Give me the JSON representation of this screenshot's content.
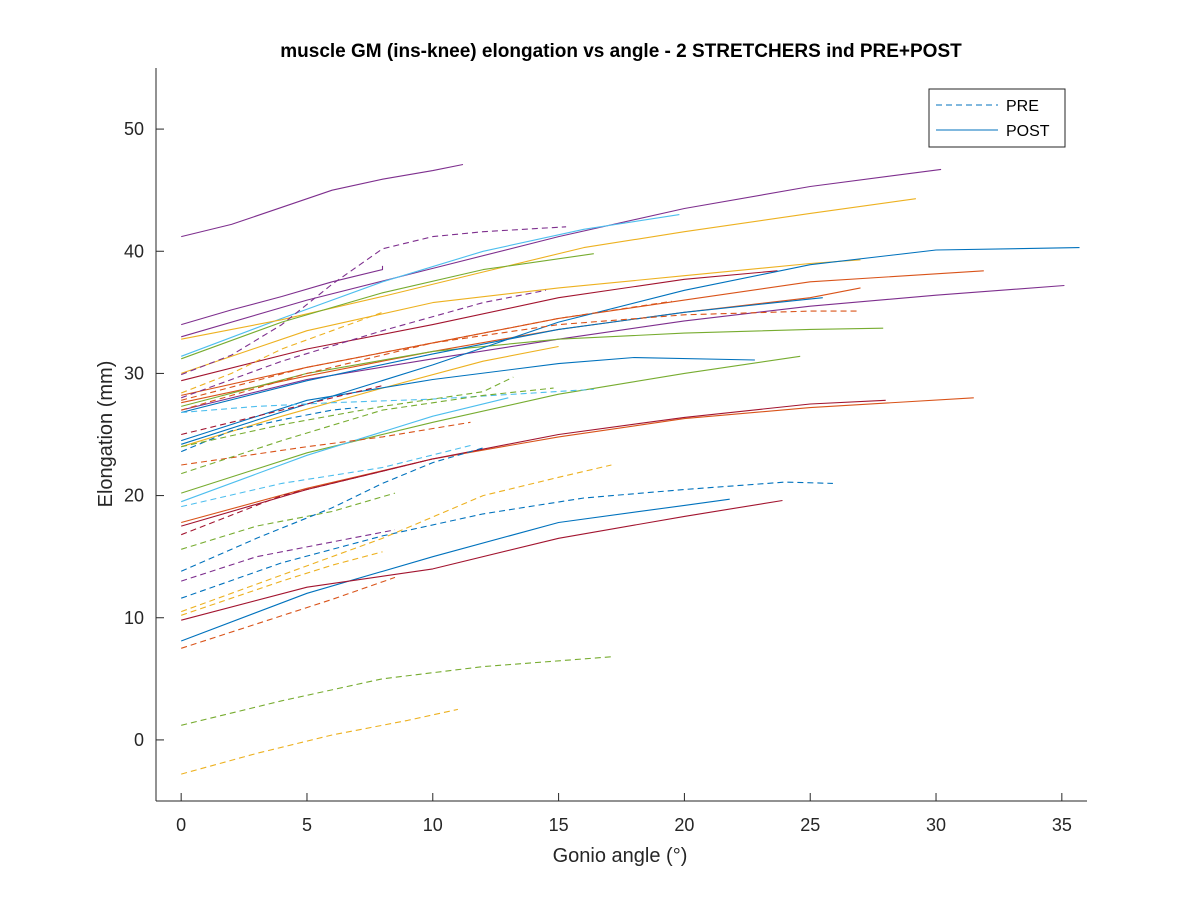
{
  "chart_data": {
    "type": "line",
    "title": "muscle GM (ins-knee) elongation vs angle - 2 STRETCHERS ind PRE+POST",
    "xlabel": "Gonio angle (°)",
    "ylabel": "Elongation (mm)",
    "xlim": [
      -1,
      36
    ],
    "ylim": [
      -5,
      55
    ],
    "xticks": [
      0,
      5,
      10,
      15,
      20,
      25,
      30,
      35
    ],
    "yticks": [
      0,
      10,
      20,
      30,
      40,
      50
    ],
    "grid": false,
    "legend": {
      "position": "top-right",
      "entries": [
        {
          "label": "PRE",
          "style": "dashed",
          "color": "#0072BD"
        },
        {
          "label": "POST",
          "style": "solid",
          "color": "#0072BD"
        }
      ]
    },
    "series": [
      {
        "style": "solid",
        "color": "#7E2F8E",
        "points": [
          [
            0,
            41.2
          ],
          [
            2,
            42.2
          ],
          [
            4,
            43.6
          ],
          [
            6,
            45.0
          ],
          [
            8,
            45.9
          ],
          [
            10,
            46.6
          ],
          [
            11.2,
            47.1
          ]
        ]
      },
      {
        "style": "solid",
        "color": "#7E2F8E",
        "points": [
          [
            0,
            34.0
          ],
          [
            2,
            35.2
          ],
          [
            4,
            36.3
          ],
          [
            6,
            37.5
          ],
          [
            8,
            38.5
          ],
          [
            8,
            38.8
          ]
        ]
      },
      {
        "style": "solid",
        "color": "#7E2F8E",
        "points": [
          [
            0,
            33.0
          ],
          [
            5,
            36.0
          ],
          [
            10,
            38.6
          ],
          [
            15,
            41.2
          ],
          [
            20,
            43.5
          ],
          [
            25,
            45.3
          ],
          [
            30.2,
            46.7
          ]
        ]
      },
      {
        "style": "solid",
        "color": "#4DBEEE",
        "points": [
          [
            0,
            31.4
          ],
          [
            4,
            34.5
          ],
          [
            8,
            37.5
          ],
          [
            12,
            40.0
          ],
          [
            16,
            41.8
          ],
          [
            19.8,
            43.0
          ]
        ]
      },
      {
        "style": "solid",
        "color": "#EDB120",
        "points": [
          [
            0,
            32.8
          ],
          [
            4,
            34.4
          ],
          [
            8,
            36.3
          ],
          [
            12,
            38.3
          ],
          [
            16,
            40.3
          ],
          [
            20,
            41.6
          ],
          [
            25,
            43.1
          ],
          [
            29.2,
            44.3
          ]
        ]
      },
      {
        "style": "solid",
        "color": "#77AC30",
        "points": [
          [
            0,
            31.2
          ],
          [
            4,
            34.2
          ],
          [
            8,
            36.6
          ],
          [
            12,
            38.5
          ],
          [
            16.4,
            39.8
          ]
        ]
      },
      {
        "style": "solid",
        "color": "#EDB120",
        "points": [
          [
            0,
            30.0
          ],
          [
            5,
            33.5
          ],
          [
            10,
            35.8
          ],
          [
            15,
            37.0
          ],
          [
            20,
            38.0
          ],
          [
            25,
            39.0
          ],
          [
            27,
            39.3
          ]
        ]
      },
      {
        "style": "solid",
        "color": "#A2142F",
        "points": [
          [
            0,
            29.4
          ],
          [
            5,
            32.0
          ],
          [
            10,
            34.0
          ],
          [
            15,
            36.2
          ],
          [
            20,
            37.7
          ],
          [
            23.7,
            38.4
          ]
        ]
      },
      {
        "style": "solid",
        "color": "#D95319",
        "points": [
          [
            0,
            28.2
          ],
          [
            5,
            30.5
          ],
          [
            10,
            32.5
          ],
          [
            15,
            34.5
          ],
          [
            20,
            36.0
          ],
          [
            25,
            37.5
          ],
          [
            31.9,
            38.4
          ]
        ]
      },
      {
        "style": "solid",
        "color": "#D95319",
        "points": [
          [
            0,
            27.6
          ],
          [
            5,
            29.8
          ],
          [
            10,
            31.8
          ],
          [
            15,
            33.6
          ],
          [
            20,
            35.0
          ],
          [
            25,
            36.2
          ],
          [
            27,
            37.0
          ]
        ]
      },
      {
        "style": "solid",
        "color": "#7E2F8E",
        "points": [
          [
            0,
            27.0
          ],
          [
            5,
            29.5
          ],
          [
            10,
            31.2
          ],
          [
            15,
            32.8
          ],
          [
            20,
            34.3
          ],
          [
            25,
            35.5
          ],
          [
            30,
            36.4
          ],
          [
            35.1,
            37.2
          ]
        ]
      },
      {
        "style": "solid",
        "color": "#77AC30",
        "points": [
          [
            0,
            27.3
          ],
          [
            5,
            30.0
          ],
          [
            10,
            31.8
          ],
          [
            15,
            32.8
          ],
          [
            20,
            33.3
          ],
          [
            25,
            33.6
          ],
          [
            27.9,
            33.7
          ]
        ]
      },
      {
        "style": "solid",
        "color": "#0072BD",
        "points": [
          [
            0,
            26.8
          ],
          [
            5,
            29.4
          ],
          [
            10,
            31.6
          ],
          [
            15,
            33.6
          ],
          [
            20,
            35.0
          ],
          [
            25.5,
            36.2
          ]
        ]
      },
      {
        "style": "solid",
        "color": "#EDB120",
        "points": [
          [
            0,
            24.0
          ],
          [
            4,
            26.5
          ],
          [
            8,
            28.8
          ],
          [
            12,
            31.0
          ],
          [
            15,
            32.2
          ]
        ]
      },
      {
        "style": "solid",
        "color": "#0072BD",
        "points": [
          [
            0,
            24.5
          ],
          [
            5,
            27.8
          ],
          [
            10,
            29.5
          ],
          [
            15,
            30.8
          ],
          [
            18,
            31.3
          ],
          [
            22.8,
            31.1
          ]
        ]
      },
      {
        "style": "solid",
        "color": "#0072BD",
        "points": [
          [
            0,
            24.2
          ],
          [
            5,
            27.5
          ],
          [
            10,
            30.7
          ],
          [
            15,
            34.2
          ],
          [
            20,
            36.8
          ],
          [
            25,
            38.9
          ],
          [
            30,
            40.1
          ],
          [
            35.7,
            40.3
          ]
        ]
      },
      {
        "style": "solid",
        "color": "#77AC30",
        "points": [
          [
            0,
            20.2
          ],
          [
            5,
            23.5
          ],
          [
            10,
            26.0
          ],
          [
            15,
            28.3
          ],
          [
            20,
            30.0
          ],
          [
            24.6,
            31.4
          ]
        ]
      },
      {
        "style": "solid",
        "color": "#4DBEEE",
        "points": [
          [
            0,
            19.5
          ],
          [
            5,
            23.3
          ],
          [
            10,
            26.5
          ],
          [
            13,
            28.0
          ]
        ]
      },
      {
        "style": "solid",
        "color": "#D95319",
        "points": [
          [
            0,
            17.8
          ],
          [
            5,
            20.6
          ],
          [
            10,
            23.0
          ],
          [
            15,
            24.8
          ],
          [
            20,
            26.3
          ],
          [
            25,
            27.2
          ],
          [
            31.5,
            28.0
          ]
        ]
      },
      {
        "style": "solid",
        "color": "#A2142F",
        "points": [
          [
            0,
            17.5
          ],
          [
            5,
            20.5
          ],
          [
            10,
            23.0
          ],
          [
            15,
            25.0
          ],
          [
            20,
            26.4
          ],
          [
            25,
            27.5
          ],
          [
            28,
            27.8
          ]
        ]
      },
      {
        "style": "solid",
        "color": "#0072BD",
        "points": [
          [
            0,
            8.1
          ],
          [
            5,
            12.0
          ],
          [
            10,
            15.0
          ],
          [
            15,
            17.8
          ],
          [
            20,
            19.2
          ],
          [
            21.8,
            19.7
          ]
        ]
      },
      {
        "style": "solid",
        "color": "#A2142F",
        "points": [
          [
            0,
            9.8
          ],
          [
            5,
            12.5
          ],
          [
            10,
            14.0
          ],
          [
            15,
            16.5
          ],
          [
            20,
            18.3
          ],
          [
            23.9,
            19.6
          ]
        ]
      },
      {
        "style": "dashed",
        "color": "#7E2F8E",
        "points": [
          [
            0,
            29.9
          ],
          [
            2,
            31.5
          ],
          [
            4,
            34.0
          ],
          [
            6,
            37.3
          ],
          [
            8,
            40.2
          ],
          [
            10,
            41.2
          ],
          [
            12,
            41.6
          ],
          [
            15.3,
            42.0
          ]
        ]
      },
      {
        "style": "dashed",
        "color": "#7E2F8E",
        "points": [
          [
            0,
            28.0
          ],
          [
            4,
            31.0
          ],
          [
            8,
            33.5
          ],
          [
            12,
            35.8
          ],
          [
            14.5,
            36.8
          ]
        ]
      },
      {
        "style": "dashed",
        "color": "#EDB120",
        "points": [
          [
            0,
            28.4
          ],
          [
            2,
            30.0
          ],
          [
            4,
            32.0
          ],
          [
            6,
            33.5
          ],
          [
            8,
            35.0
          ]
        ]
      },
      {
        "style": "dashed",
        "color": "#D95319",
        "points": [
          [
            0,
            27.8
          ],
          [
            5,
            30.5
          ],
          [
            10,
            32.5
          ],
          [
            15,
            34.5
          ],
          [
            19.5,
            35.9
          ]
        ]
      },
      {
        "style": "dashed",
        "color": "#D95319",
        "points": [
          [
            0,
            27.0
          ],
          [
            5,
            30.0
          ],
          [
            10,
            32.5
          ],
          [
            15,
            34.0
          ],
          [
            20,
            34.8
          ],
          [
            25,
            35.1
          ],
          [
            27,
            35.1
          ]
        ]
      },
      {
        "style": "dashed",
        "color": "#A2142F",
        "points": [
          [
            0,
            25.0
          ],
          [
            5,
            27.5
          ],
          [
            8,
            29.0
          ]
        ]
      },
      {
        "style": "dashed",
        "color": "#4DBEEE",
        "points": [
          [
            0,
            26.8
          ],
          [
            3,
            27.3
          ],
          [
            6,
            27.6
          ],
          [
            10,
            27.9
          ],
          [
            14,
            28.4
          ],
          [
            16.4,
            28.7
          ]
        ]
      },
      {
        "style": "dashed",
        "color": "#0072BD",
        "points": [
          [
            0,
            23.6
          ],
          [
            2,
            25.3
          ],
          [
            4,
            26.2
          ],
          [
            6,
            27.0
          ],
          [
            7,
            27.2
          ]
        ]
      },
      {
        "style": "dashed",
        "color": "#77AC30",
        "points": [
          [
            0,
            24.0
          ],
          [
            4,
            25.8
          ],
          [
            8,
            27.3
          ],
          [
            12,
            28.5
          ],
          [
            13.2,
            29.7
          ]
        ]
      },
      {
        "style": "dashed",
        "color": "#D95319",
        "points": [
          [
            0,
            22.5
          ],
          [
            5,
            24.0
          ],
          [
            8,
            24.8
          ],
          [
            11.5,
            26.0
          ]
        ]
      },
      {
        "style": "dashed",
        "color": "#77AC30",
        "points": [
          [
            0,
            21.8
          ],
          [
            4,
            24.5
          ],
          [
            8,
            27.0
          ],
          [
            12,
            28.2
          ],
          [
            14.8,
            28.8
          ]
        ]
      },
      {
        "style": "dashed",
        "color": "#4DBEEE",
        "points": [
          [
            0,
            19.1
          ],
          [
            4,
            21.0
          ],
          [
            8,
            22.3
          ],
          [
            11.5,
            24.1
          ]
        ]
      },
      {
        "style": "dashed",
        "color": "#A2142F",
        "points": [
          [
            0,
            16.8
          ],
          [
            4,
            20.0
          ],
          [
            8,
            22.0
          ],
          [
            10,
            23.0
          ]
        ]
      },
      {
        "style": "dashed",
        "color": "#77AC30",
        "points": [
          [
            0,
            15.6
          ],
          [
            3,
            17.5
          ],
          [
            6,
            18.7
          ],
          [
            8.5,
            20.2
          ]
        ]
      },
      {
        "style": "dashed",
        "color": "#0072BD",
        "points": [
          [
            0,
            13.8
          ],
          [
            3,
            16.5
          ],
          [
            6,
            19.0
          ],
          [
            8,
            21.0
          ],
          [
            10,
            22.7
          ],
          [
            12,
            23.9
          ]
        ]
      },
      {
        "style": "dashed",
        "color": "#7E2F8E",
        "points": [
          [
            0,
            13.0
          ],
          [
            3,
            15.0
          ],
          [
            6,
            16.2
          ],
          [
            8.5,
            17.2
          ]
        ]
      },
      {
        "style": "dashed",
        "color": "#0072BD",
        "points": [
          [
            0,
            11.6
          ],
          [
            4,
            14.5
          ],
          [
            8,
            16.7
          ],
          [
            12,
            18.5
          ],
          [
            16,
            19.8
          ],
          [
            20,
            20.5
          ],
          [
            24,
            21.1
          ],
          [
            25.9,
            21.0
          ]
        ]
      },
      {
        "style": "dashed",
        "color": "#EDB120",
        "points": [
          [
            0,
            10.5
          ],
          [
            4,
            13.5
          ],
          [
            8,
            16.5
          ],
          [
            12,
            20.0
          ],
          [
            15,
            21.5
          ],
          [
            17.1,
            22.5
          ]
        ]
      },
      {
        "style": "dashed",
        "color": "#EDB120",
        "points": [
          [
            0,
            10.2
          ],
          [
            2,
            11.6
          ],
          [
            4,
            13.0
          ],
          [
            6,
            14.3
          ],
          [
            8,
            15.4
          ]
        ]
      },
      {
        "style": "dashed",
        "color": "#D95319",
        "points": [
          [
            0,
            7.5
          ],
          [
            3,
            9.5
          ],
          [
            6,
            11.5
          ],
          [
            8.5,
            13.3
          ]
        ]
      },
      {
        "style": "dashed",
        "color": "#77AC30",
        "points": [
          [
            0,
            1.2
          ],
          [
            4,
            3.2
          ],
          [
            8,
            5.0
          ],
          [
            12,
            6.0
          ],
          [
            17.1,
            6.8
          ]
        ]
      },
      {
        "style": "dashed",
        "color": "#EDB120",
        "points": [
          [
            0,
            -2.8
          ],
          [
            3,
            -1.1
          ],
          [
            6,
            0.4
          ],
          [
            9,
            1.6
          ],
          [
            11,
            2.5
          ]
        ]
      }
    ]
  }
}
